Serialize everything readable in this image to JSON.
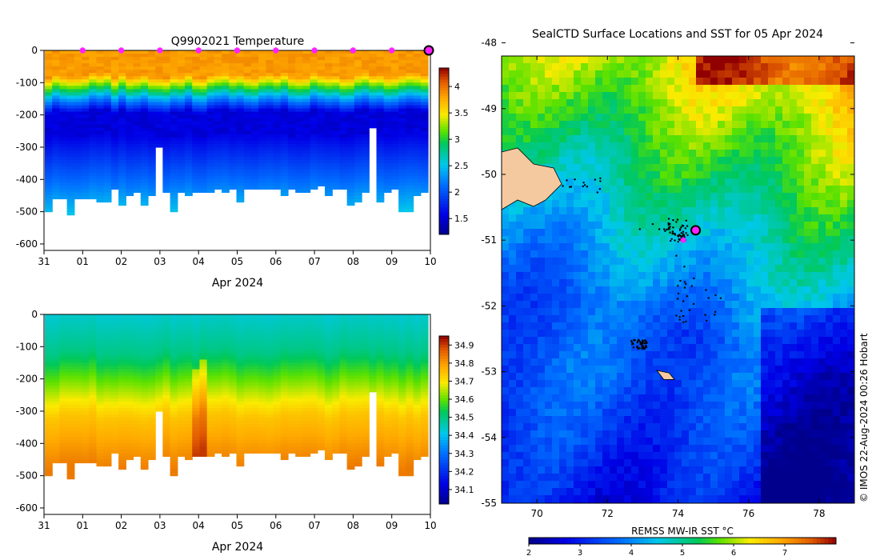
{
  "chart_data": [
    {
      "type": "heatmap",
      "title": "Q9902021  Temperature",
      "xlabel": "Apr 2024",
      "ylabel": "",
      "xlim": [
        0,
        10
      ],
      "ylim": [
        -620,
        0
      ],
      "x_tick_labels": [
        "31",
        "01",
        "02",
        "03",
        "04",
        "05",
        "06",
        "07",
        "08",
        "09",
        "10"
      ],
      "y_tick_labels": [
        "0",
        "-100",
        "-200",
        "-300",
        "-400",
        "-500",
        "-600"
      ],
      "y_ticks": [
        0,
        -100,
        -200,
        -300,
        -400,
        -500,
        -600
      ],
      "colorbar": {
        "min": 1.2,
        "max": 4.35,
        "tick_labels": [
          "1.5",
          "2",
          "2.5",
          "3",
          "3.5",
          "4"
        ],
        "tick_values": [
          1.5,
          2,
          2.5,
          3,
          3.5,
          4
        ]
      },
      "surface_markers_day": [
        1,
        2,
        3,
        4,
        5,
        6,
        7,
        8,
        9
      ],
      "current_marker_day": 10,
      "profile_max_depths": [
        500,
        455,
        455,
        505,
        460,
        455,
        460,
        470,
        470,
        430,
        480,
        445,
        435,
        480,
        445,
        300,
        440,
        495,
        440,
        445,
        440,
        435,
        440,
        430,
        435,
        430,
        465,
        430,
        425,
        430,
        430,
        425,
        445,
        430,
        435,
        440,
        425,
        420,
        445,
        425,
        430,
        480,
        470,
        440,
        240,
        470,
        440,
        425,
        500,
        500,
        445,
        440
      ]
    },
    {
      "type": "heatmap",
      "title": "",
      "xlabel": "Apr 2024",
      "ylabel": "",
      "xlim": [
        0,
        10
      ],
      "ylim": [
        -620,
        0
      ],
      "x_tick_labels": [
        "31",
        "01",
        "02",
        "03",
        "04",
        "05",
        "06",
        "07",
        "08",
        "09",
        "10"
      ],
      "y_tick_labels": [
        "0",
        "-100",
        "-200",
        "-300",
        "-400",
        "-500",
        "-600"
      ],
      "y_ticks": [
        0,
        -100,
        -200,
        -300,
        -400,
        -500,
        -600
      ],
      "colorbar": {
        "min": 34.02,
        "max": 34.95,
        "tick_labels": [
          "34.1",
          "34.2",
          "34.3",
          "34.4",
          "34.5",
          "34.6",
          "34.7",
          "34.8",
          "34.9"
        ],
        "tick_values": [
          34.1,
          34.2,
          34.3,
          34.4,
          34.5,
          34.6,
          34.7,
          34.8,
          34.9
        ]
      },
      "profile_max_depths": [
        500,
        455,
        455,
        505,
        460,
        455,
        460,
        470,
        470,
        430,
        480,
        445,
        435,
        480,
        445,
        300,
        440,
        495,
        440,
        445,
        440,
        435,
        440,
        430,
        435,
        430,
        465,
        430,
        425,
        430,
        430,
        425,
        445,
        430,
        435,
        440,
        425,
        420,
        445,
        425,
        430,
        480,
        470,
        440,
        240,
        470,
        440,
        425,
        500,
        500,
        445,
        440
      ]
    },
    {
      "type": "heatmap",
      "title": "SealCTD Surface Locations and SST for 05 Apr 2024",
      "xlabel": "",
      "ylabel": "",
      "xlim": [
        69,
        79
      ],
      "ylim": [
        -55,
        -48.2
      ],
      "x_tick_labels": [
        "70",
        "72",
        "74",
        "76",
        "78"
      ],
      "x_ticks": [
        70,
        72,
        74,
        76,
        78
      ],
      "y_tick_labels": [
        "-48",
        "-49",
        "-50",
        "-51",
        "-52",
        "-53",
        "-54",
        "-55"
      ],
      "y_ticks": [
        -48,
        -49,
        -50,
        -51,
        -52,
        -53,
        -54,
        -55
      ],
      "colorbar": {
        "label": "REMSS MW-IR SST °C",
        "min": 2,
        "max": 8,
        "tick_labels": [
          "2",
          "3",
          "4",
          "5",
          "6",
          "7"
        ],
        "tick_values": [
          2,
          3,
          4,
          5,
          6,
          7
        ]
      },
      "current_position": {
        "lon": 74.5,
        "lat": -50.85
      },
      "credit": "© IMOS 22-Aug-2024 00:26 Hobart"
    }
  ]
}
